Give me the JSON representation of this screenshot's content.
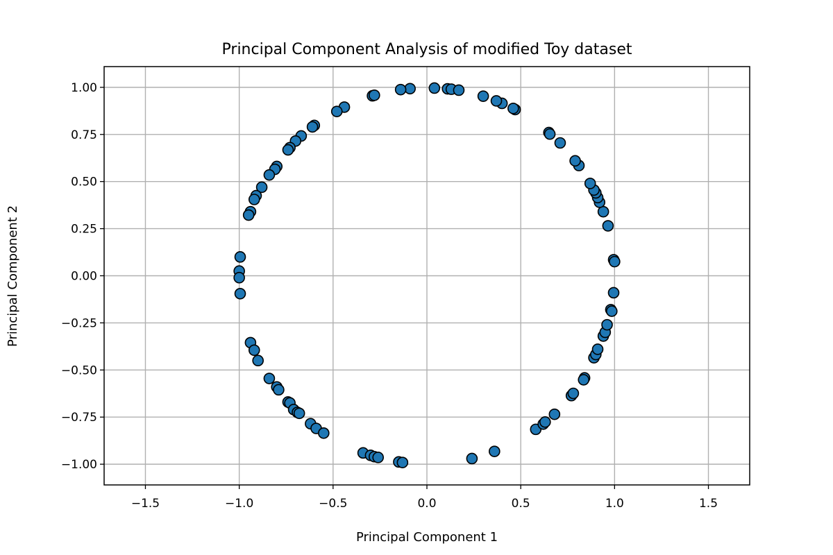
{
  "chart_data": {
    "type": "scatter",
    "title": "Principal Component Analysis of modified Toy dataset",
    "xlabel": "Principal Component 1",
    "ylabel": "Principal Component 2",
    "xlim": [
      -1.72,
      1.72
    ],
    "ylim": [
      -1.11,
      1.11
    ],
    "xticks": [
      -1.5,
      -1.0,
      -0.5,
      0.0,
      0.5,
      1.0,
      1.5
    ],
    "xtick_labels": [
      "−1.5",
      "−1.0",
      "−0.5",
      "0.0",
      "0.5",
      "1.0",
      "1.5"
    ],
    "yticks": [
      -1.0,
      -0.75,
      -0.5,
      -0.25,
      0.0,
      0.25,
      0.5,
      0.75,
      1.0
    ],
    "ytick_labels": [
      "−1.00",
      "−0.75",
      "−0.50",
      "−0.25",
      "0.00",
      "0.25",
      "0.50",
      "0.75",
      "1.00"
    ],
    "grid": true,
    "legend": "none",
    "colors": {
      "marker_fill": "#1f77b4",
      "marker_edge": "#000000",
      "grid": "#b0b0b0"
    },
    "points": [
      {
        "x": 0.04,
        "y": 0.996
      },
      {
        "x": 0.11,
        "y": 0.992
      },
      {
        "x": 0.13,
        "y": 0.99
      },
      {
        "x": 0.17,
        "y": 0.985
      },
      {
        "x": -0.09,
        "y": 0.993
      },
      {
        "x": -0.14,
        "y": 0.988
      },
      {
        "x": -0.29,
        "y": 0.955
      },
      {
        "x": -0.28,
        "y": 0.958
      },
      {
        "x": -0.44,
        "y": 0.895
      },
      {
        "x": -0.48,
        "y": 0.872
      },
      {
        "x": -0.6,
        "y": 0.798
      },
      {
        "x": -0.61,
        "y": 0.79
      },
      {
        "x": -0.67,
        "y": 0.742
      },
      {
        "x": -0.7,
        "y": 0.715
      },
      {
        "x": -0.73,
        "y": 0.68
      },
      {
        "x": -0.74,
        "y": 0.668
      },
      {
        "x": -0.8,
        "y": 0.58
      },
      {
        "x": -0.81,
        "y": 0.565
      },
      {
        "x": -0.84,
        "y": 0.535
      },
      {
        "x": -0.88,
        "y": 0.47
      },
      {
        "x": -0.91,
        "y": 0.425
      },
      {
        "x": -0.92,
        "y": 0.405
      },
      {
        "x": -0.94,
        "y": 0.34
      },
      {
        "x": -0.95,
        "y": 0.322
      },
      {
        "x": -0.995,
        "y": 0.1
      },
      {
        "x": -1.0,
        "y": 0.025
      },
      {
        "x": -1.0,
        "y": -0.01
      },
      {
        "x": -0.995,
        "y": -0.095
      },
      {
        "x": -0.94,
        "y": -0.355
      },
      {
        "x": -0.92,
        "y": -0.395
      },
      {
        "x": -0.9,
        "y": -0.45
      },
      {
        "x": -0.84,
        "y": -0.545
      },
      {
        "x": -0.8,
        "y": -0.59
      },
      {
        "x": -0.79,
        "y": -0.605
      },
      {
        "x": -0.74,
        "y": -0.67
      },
      {
        "x": -0.73,
        "y": -0.675
      },
      {
        "x": -0.71,
        "y": -0.71
      },
      {
        "x": -0.69,
        "y": -0.725
      },
      {
        "x": -0.68,
        "y": -0.73
      },
      {
        "x": -0.62,
        "y": -0.785
      },
      {
        "x": -0.59,
        "y": -0.81
      },
      {
        "x": -0.55,
        "y": -0.835
      },
      {
        "x": -0.34,
        "y": -0.94
      },
      {
        "x": -0.3,
        "y": -0.953
      },
      {
        "x": -0.28,
        "y": -0.96
      },
      {
        "x": -0.26,
        "y": -0.964
      },
      {
        "x": -0.15,
        "y": -0.988
      },
      {
        "x": -0.13,
        "y": -0.991
      },
      {
        "x": 0.24,
        "y": -0.97
      },
      {
        "x": 0.36,
        "y": -0.932
      },
      {
        "x": 0.58,
        "y": -0.815
      },
      {
        "x": 0.62,
        "y": -0.787
      },
      {
        "x": 0.63,
        "y": -0.776
      },
      {
        "x": 0.68,
        "y": -0.735
      },
      {
        "x": 0.77,
        "y": -0.636
      },
      {
        "x": 0.78,
        "y": -0.624
      },
      {
        "x": 0.84,
        "y": -0.542
      },
      {
        "x": 0.835,
        "y": -0.552
      },
      {
        "x": 0.89,
        "y": -0.435
      },
      {
        "x": 0.9,
        "y": -0.418
      },
      {
        "x": 0.91,
        "y": -0.39
      },
      {
        "x": 0.94,
        "y": -0.32
      },
      {
        "x": 0.95,
        "y": -0.3
      },
      {
        "x": 0.96,
        "y": -0.26
      },
      {
        "x": 0.98,
        "y": -0.18
      },
      {
        "x": 0.985,
        "y": -0.188
      },
      {
        "x": 0.995,
        "y": -0.09
      },
      {
        "x": 0.995,
        "y": 0.085
      },
      {
        "x": 1.0,
        "y": 0.075
      },
      {
        "x": 0.965,
        "y": 0.265
      },
      {
        "x": 0.94,
        "y": 0.34
      },
      {
        "x": 0.92,
        "y": 0.39
      },
      {
        "x": 0.91,
        "y": 0.415
      },
      {
        "x": 0.9,
        "y": 0.44
      },
      {
        "x": 0.89,
        "y": 0.455
      },
      {
        "x": 0.87,
        "y": 0.49
      },
      {
        "x": 0.81,
        "y": 0.585
      },
      {
        "x": 0.79,
        "y": 0.61
      },
      {
        "x": 0.71,
        "y": 0.705
      },
      {
        "x": 0.65,
        "y": 0.76
      },
      {
        "x": 0.655,
        "y": 0.752
      },
      {
        "x": 0.47,
        "y": 0.882
      },
      {
        "x": 0.46,
        "y": 0.888
      },
      {
        "x": 0.4,
        "y": 0.915
      },
      {
        "x": 0.37,
        "y": 0.928
      },
      {
        "x": 0.3,
        "y": 0.953
      }
    ]
  }
}
